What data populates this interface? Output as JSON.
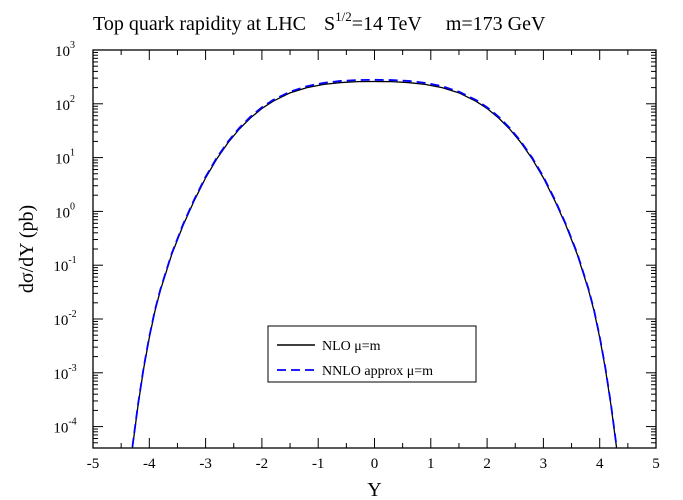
{
  "chart_data": {
    "type": "line",
    "title": {
      "main": "Top quark rapidity at  LHC",
      "energy_prefix": "S",
      "energy_exponent": "1/2",
      "energy_suffix": "=14 TeV",
      "mass": "m=173 GeV"
    },
    "xlabel": "Y",
    "ylabel": "dσ/dY (pb)",
    "xlim": [
      -5,
      5
    ],
    "ylim": [
      4e-05,
      1000
    ],
    "yscale": "log",
    "x_ticks": [
      "-5",
      "-4",
      "-3",
      "-2",
      "-1",
      "0",
      "1",
      "2",
      "3",
      "4",
      "5"
    ],
    "y_ticks": [
      {
        "base": "10",
        "exp": "-4"
      },
      {
        "base": "10",
        "exp": "-3"
      },
      {
        "base": "10",
        "exp": "-2"
      },
      {
        "base": "10",
        "exp": "-1"
      },
      {
        "base": "10",
        "exp": "0"
      },
      {
        "base": "10",
        "exp": "1"
      },
      {
        "base": "10",
        "exp": "2"
      },
      {
        "base": "10",
        "exp": "3"
      }
    ],
    "grid": false,
    "legend_position": "lower-center",
    "series": [
      {
        "name": "NLO μ=m",
        "color": "#000000",
        "dash": "solid",
        "x": [
          -4.3,
          -4.2,
          -4.1,
          -4.0,
          -3.9,
          -3.8,
          -3.6,
          -3.4,
          -3.2,
          -3.0,
          -2.8,
          -2.6,
          -2.4,
          -2.2,
          -2.0,
          -1.8,
          -1.5,
          -1.2,
          -0.9,
          -0.6,
          -0.3,
          0,
          0.3,
          0.6,
          0.9,
          1.2,
          1.5,
          1.8,
          2.0,
          2.2,
          2.4,
          2.6,
          2.8,
          3.0,
          3.2,
          3.4,
          3.6,
          3.8,
          3.9,
          4.0,
          4.1,
          4.2,
          4.3
        ],
        "y": [
          4e-05,
          0.00025,
          0.0012,
          0.0045,
          0.014,
          0.035,
          0.16,
          0.55,
          1.6,
          4.2,
          9.5,
          19,
          34,
          55,
          82,
          112,
          160,
          200,
          230,
          248,
          258,
          260,
          258,
          248,
          230,
          200,
          160,
          112,
          82,
          55,
          34,
          19,
          9.5,
          4.2,
          1.6,
          0.55,
          0.16,
          0.035,
          0.014,
          0.0045,
          0.0012,
          0.00025,
          4e-05
        ]
      },
      {
        "name": "NNLO approx μ=m",
        "color": "#0000ff",
        "dash": "dashed",
        "x": [
          -4.3,
          -4.2,
          -4.1,
          -4.0,
          -3.9,
          -3.8,
          -3.6,
          -3.4,
          -3.2,
          -3.0,
          -2.8,
          -2.6,
          -2.4,
          -2.2,
          -2.0,
          -1.8,
          -1.5,
          -1.2,
          -0.9,
          -0.6,
          -0.3,
          0,
          0.3,
          0.6,
          0.9,
          1.2,
          1.5,
          1.8,
          2.0,
          2.2,
          2.4,
          2.6,
          2.8,
          3.0,
          3.2,
          3.4,
          3.6,
          3.8,
          3.9,
          4.0,
          4.1,
          4.2,
          4.3
        ],
        "y": [
          4.2e-05,
          0.00026,
          0.00125,
          0.0047,
          0.0146,
          0.0365,
          0.167,
          0.575,
          1.68,
          4.4,
          10,
          20,
          35.7,
          58,
          86,
          118,
          168,
          212,
          245,
          266,
          276,
          279,
          276,
          266,
          245,
          212,
          168,
          118,
          86,
          58,
          35.7,
          20,
          10,
          4.4,
          1.68,
          0.575,
          0.167,
          0.0365,
          0.0146,
          0.0047,
          0.00125,
          0.00026,
          4.2e-05
        ]
      }
    ]
  }
}
